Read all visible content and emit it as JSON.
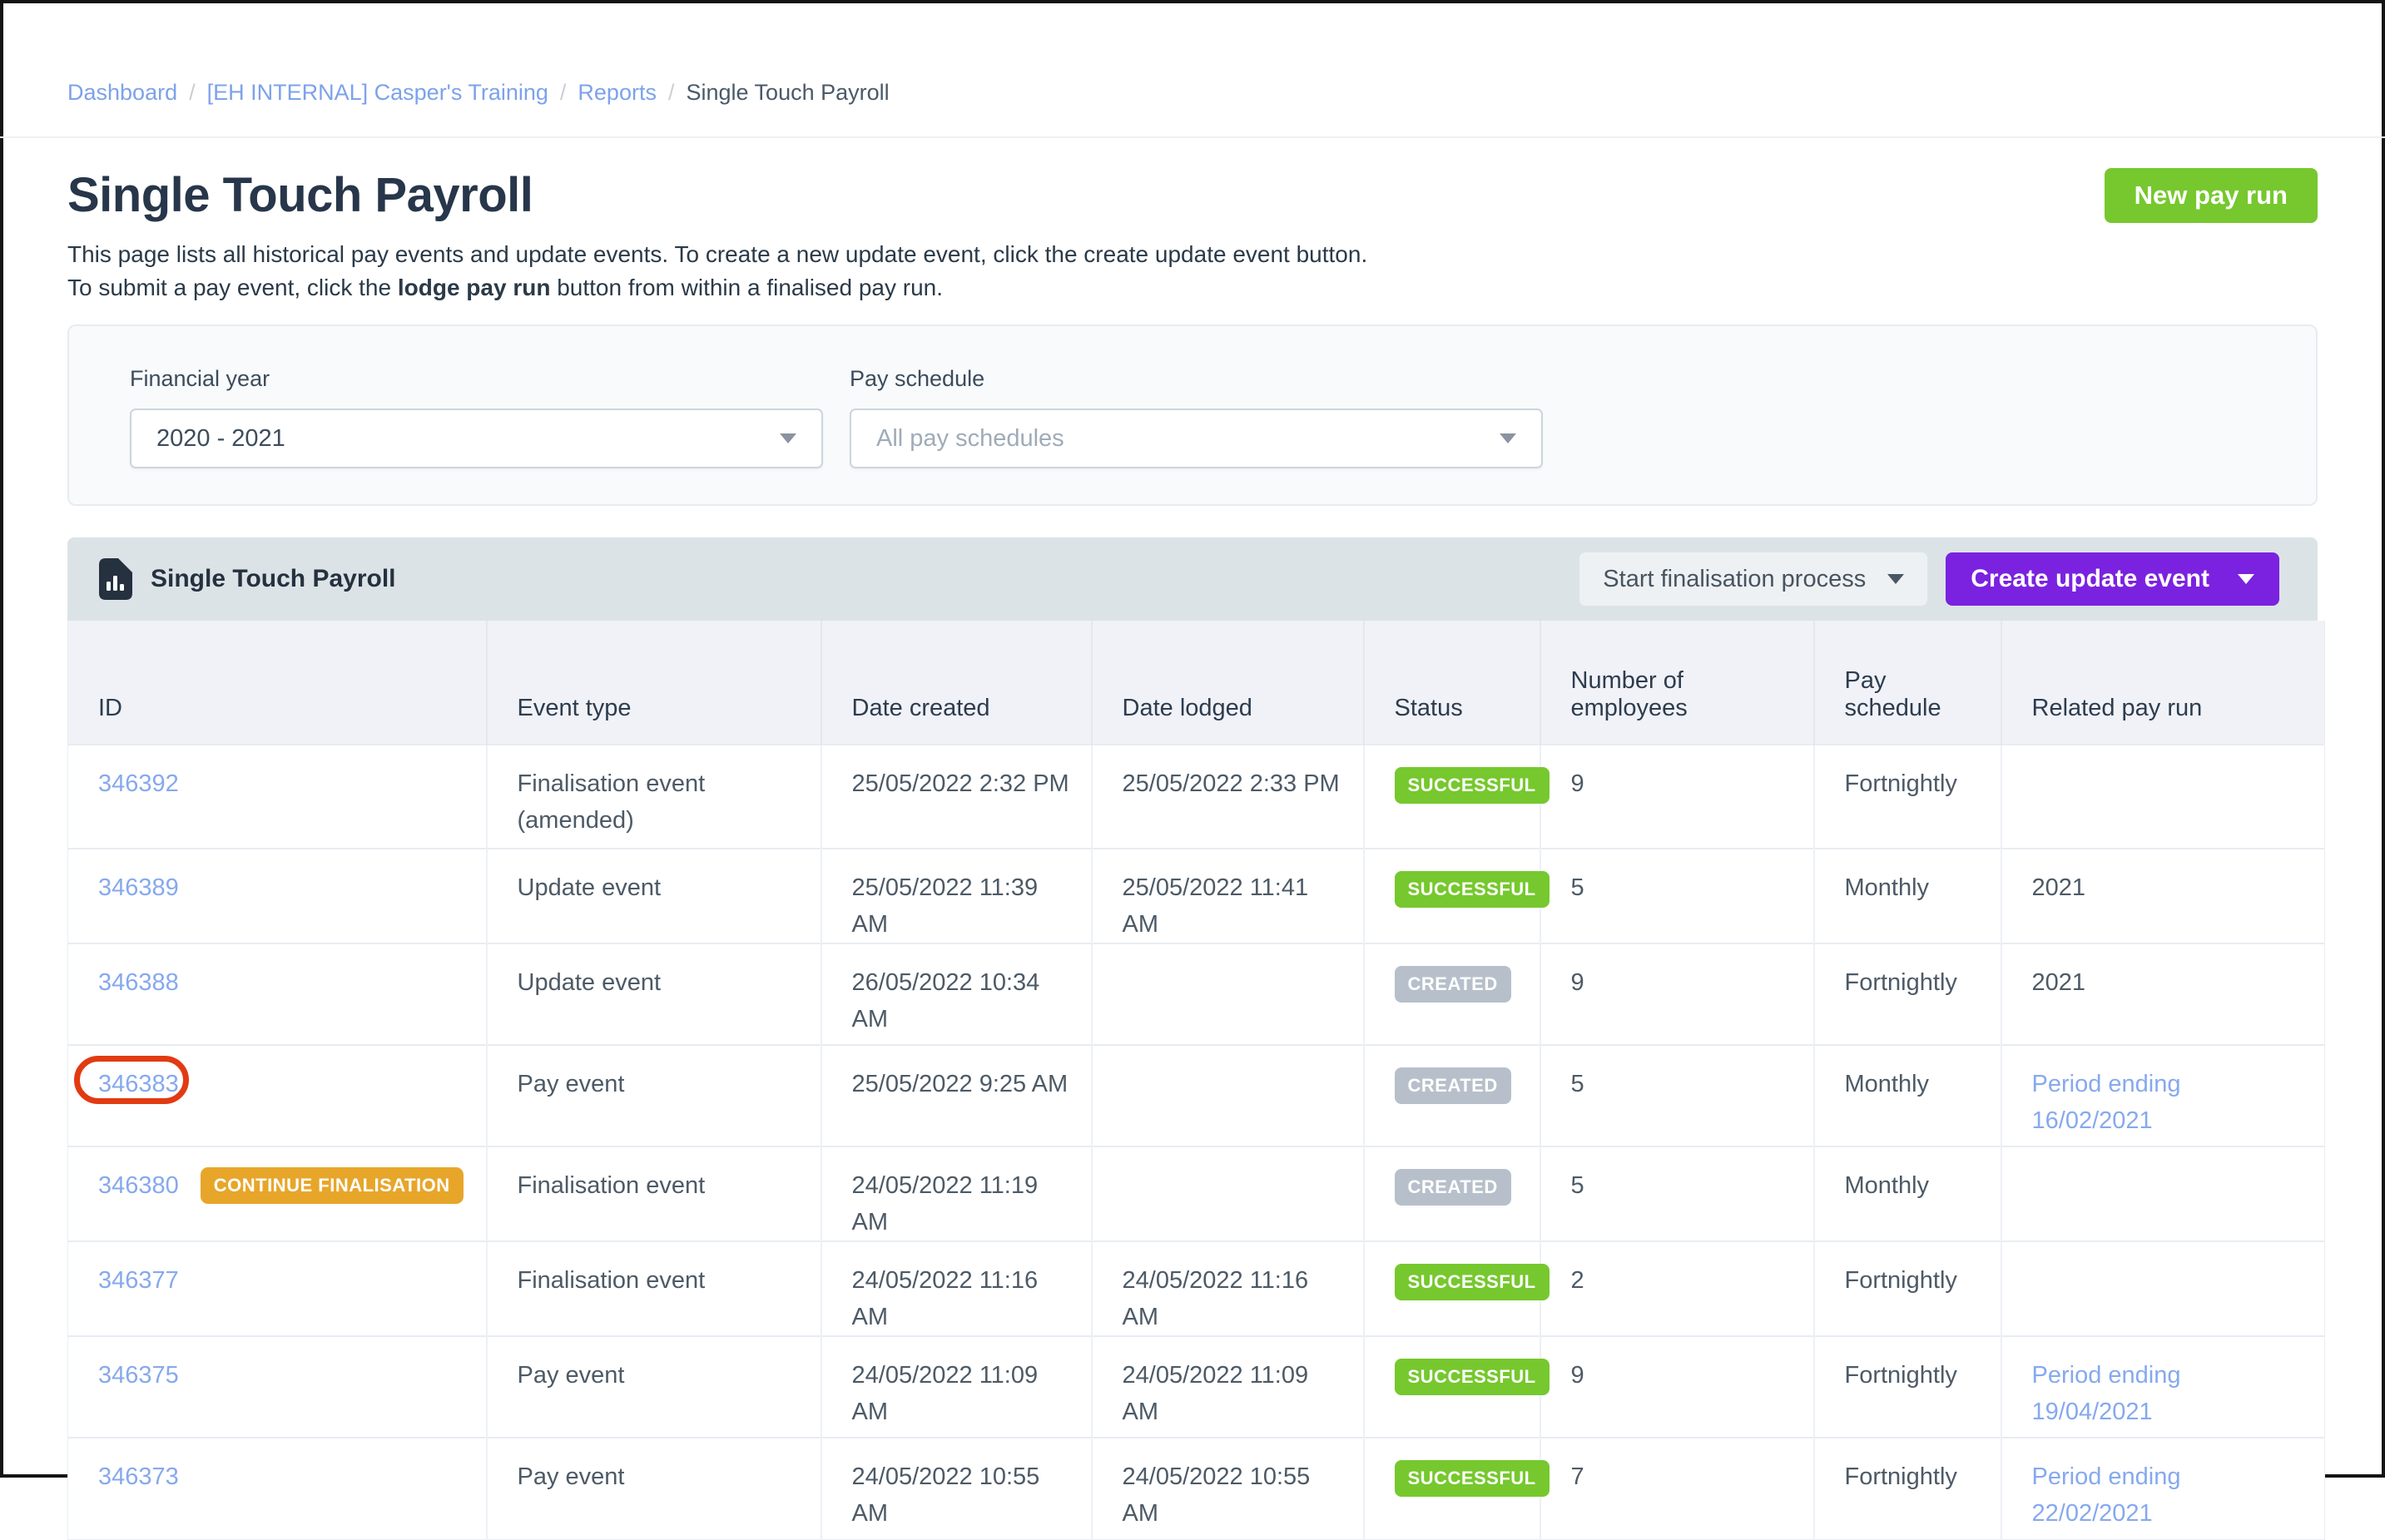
{
  "colors": {
    "accent_green": "#76c82e",
    "accent_purple": "#7b22e0",
    "badge_amber": "#e7a62a",
    "badge_gray": "#b7c0ca",
    "link_blue": "#86a9ee",
    "annotation_red": "#e23a12",
    "panel_header_bg": "#dce3e7",
    "column_header_bg": "#f0f2f7"
  },
  "breadcrumb": {
    "separator": "/",
    "items": [
      {
        "label": "Dashboard",
        "is_link": true
      },
      {
        "label": "[EH INTERNAL] Casper's Training",
        "is_link": true
      },
      {
        "label": "Reports",
        "is_link": true
      },
      {
        "label": "Single Touch Payroll",
        "is_link": false
      }
    ]
  },
  "header": {
    "title": "Single Touch Payroll",
    "new_pay_run_label": "New pay run",
    "description_line1": "This page lists all historical pay events and update events. To create a new update event, click the create update event button.",
    "description_line2_prefix": "To submit a pay event, click the ",
    "description_line2_bold": "lodge pay run",
    "description_line2_suffix": " button from within a finalised pay run."
  },
  "filters": {
    "financial_year": {
      "label": "Financial year",
      "value": "2020 - 2021"
    },
    "pay_schedule": {
      "label": "Pay schedule",
      "placeholder": "All pay schedules"
    }
  },
  "table": {
    "panel_title": "Single Touch Payroll",
    "start_finalisation_label": "Start finalisation process",
    "create_update_event_label": "Create update event",
    "columns": [
      "ID",
      "Event type",
      "Date created",
      "Date lodged",
      "Status",
      "Number of\nemployees",
      "Pay\nschedule",
      "Related pay run"
    ],
    "rows": [
      {
        "id": "346392",
        "id_badge": "",
        "annotated": false,
        "event_type": "Finalisation event\n(amended)",
        "date_created": "25/05/2022 2:32 PM",
        "date_lodged": "25/05/2022 2:33 PM",
        "status": "SUCCESSFUL",
        "status_type": "success",
        "employees": "9",
        "pay_schedule": "Fortnightly",
        "related": "",
        "related_type": "none",
        "row_h": "h125"
      },
      {
        "id": "346389",
        "id_badge": "",
        "annotated": false,
        "event_type": "Update event",
        "date_created": "25/05/2022 11:39 AM",
        "date_lodged": "25/05/2022 11:41 AM",
        "status": "SUCCESSFUL",
        "status_type": "success",
        "employees": "5",
        "pay_schedule": "Monthly",
        "related": "2021",
        "related_type": "text",
        "row_h": "h83"
      },
      {
        "id": "346388",
        "id_badge": "",
        "annotated": false,
        "event_type": "Update event",
        "date_created": "26/05/2022 10:34\nAM",
        "date_lodged": "",
        "status": "CREATED",
        "status_type": "created",
        "employees": "9",
        "pay_schedule": "Fortnightly",
        "related": "2021",
        "related_type": "text",
        "row_h": "h122"
      },
      {
        "id": "346383",
        "id_badge": "",
        "annotated": true,
        "event_type": "Pay event",
        "date_created": "25/05/2022 9:25 AM",
        "date_lodged": "",
        "status": "CREATED",
        "status_type": "created",
        "employees": "5",
        "pay_schedule": "Monthly",
        "related": "Period ending\n16/02/2021",
        "related_type": "link",
        "row_h": "h122"
      },
      {
        "id": "346380",
        "id_badge": "CONTINUE FINALISATION",
        "annotated": false,
        "event_type": "Finalisation event",
        "date_created": "24/05/2022 11:19 AM",
        "date_lodged": "",
        "status": "CREATED",
        "status_type": "created",
        "employees": "5",
        "pay_schedule": "Monthly",
        "related": "",
        "related_type": "none",
        "row_h": "h83"
      },
      {
        "id": "346377",
        "id_badge": "",
        "annotated": false,
        "event_type": "Finalisation event",
        "date_created": "24/05/2022 11:16 AM",
        "date_lodged": "24/05/2022 11:16 AM",
        "status": "SUCCESSFUL",
        "status_type": "success",
        "employees": "2",
        "pay_schedule": "Fortnightly",
        "related": "",
        "related_type": "none",
        "row_h": "h83"
      },
      {
        "id": "346375",
        "id_badge": "",
        "annotated": false,
        "event_type": "Pay event",
        "date_created": "24/05/2022 11:09 AM",
        "date_lodged": "24/05/2022 11:09 AM",
        "status": "SUCCESSFUL",
        "status_type": "success",
        "employees": "9",
        "pay_schedule": "Fortnightly",
        "related": "Period ending\n19/04/2021",
        "related_type": "link",
        "row_h": "h122"
      },
      {
        "id": "346373",
        "id_badge": "",
        "annotated": false,
        "event_type": "Pay event",
        "date_created": "24/05/2022 10:55\nAM",
        "date_lodged": "24/05/2022 10:55\nAM",
        "status": "SUCCESSFUL",
        "status_type": "success",
        "employees": "7",
        "pay_schedule": "Fortnightly",
        "related": "Period ending\n22/02/2021",
        "related_type": "link",
        "row_h": "h122"
      }
    ]
  }
}
